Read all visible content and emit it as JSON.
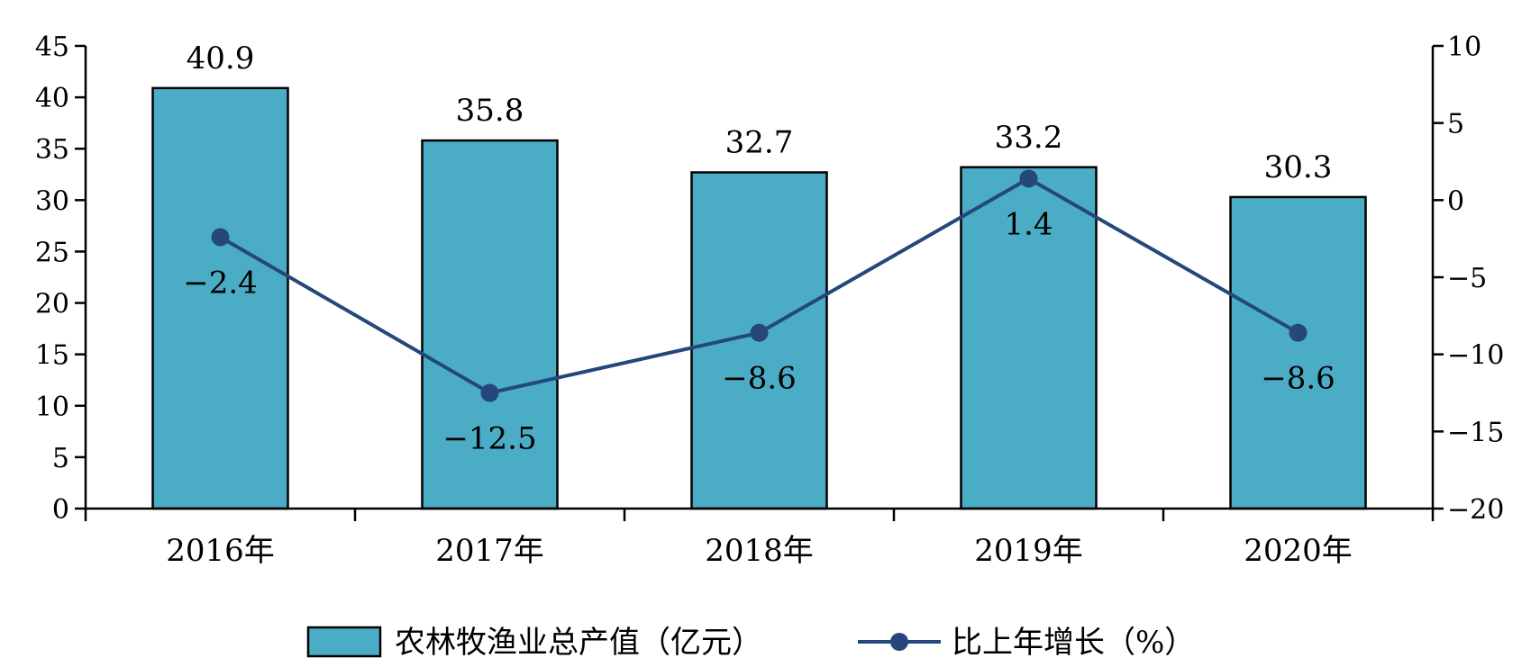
{
  "chart_data": {
    "type": "bar+line",
    "categories": [
      "2016年",
      "2017年",
      "2018年",
      "2019年",
      "2020年"
    ],
    "series": [
      {
        "name": "农林牧渔业总产值（亿元）",
        "type": "bar",
        "axis": "left",
        "values": [
          40.9,
          35.8,
          32.7,
          33.2,
          30.3
        ],
        "labels": [
          "40.9",
          "35.8",
          "32.7",
          "33.2",
          "30.3"
        ],
        "color": "#4BACC6"
      },
      {
        "name": "比上年增长（%）",
        "type": "line",
        "axis": "right",
        "values": [
          -2.4,
          -12.5,
          -8.6,
          1.4,
          -8.6
        ],
        "labels": [
          "-2.4",
          "-12.5",
          "-8.6",
          "1.4",
          "-8.6"
        ],
        "color": "#24477C"
      }
    ],
    "y_left": {
      "min": 0,
      "max": 45,
      "step": 5,
      "ticks": [
        "0",
        "5",
        "10",
        "15",
        "20",
        "25",
        "30",
        "35",
        "40",
        "45"
      ]
    },
    "y_right": {
      "min": -20,
      "max": 10,
      "step": 5,
      "ticks": [
        "-20",
        "-15",
        "-10",
        "-5",
        "0",
        "5",
        "10"
      ]
    },
    "grid": false,
    "legend_position": "bottom"
  }
}
